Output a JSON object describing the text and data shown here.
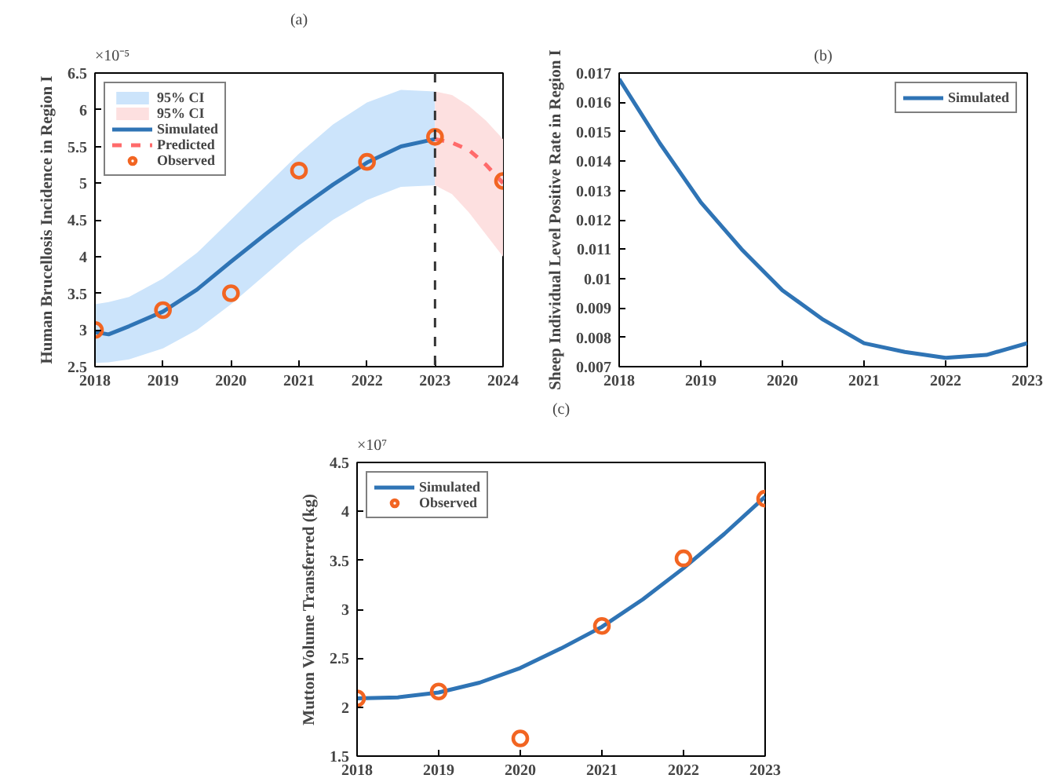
{
  "chart_data": [
    {
      "type": "line",
      "title": "(a)",
      "ylabel": "Human Brucellosis Incidence in Region I",
      "annotations": [
        "×10⁻⁵"
      ],
      "xlim": [
        2018,
        2024
      ],
      "xticks": [
        2018,
        2019,
        2020,
        2021,
        2022,
        2023,
        2024
      ],
      "ylim": [
        2.5,
        6.5
      ],
      "yticks": [
        2.5,
        3,
        3.5,
        4,
        4.5,
        5,
        5.5,
        6,
        6.5
      ],
      "grid": false,
      "legend": "top left",
      "ref_lines": [
        {
          "axis": "x",
          "value": 2023,
          "color": "#333333",
          "line_style": "dashed"
        }
      ],
      "series": [
        {
          "type": "area",
          "name": "95% CI",
          "color": "#cce4fb"
        },
        {
          "type": "area",
          "name": "95% CI",
          "color": "#fde0e0"
        },
        {
          "type": "line",
          "name": "Simulated",
          "color": "#2f74b5",
          "line_style": "solid",
          "x": [
            2018,
            2018.2,
            2018.5,
            2019,
            2019.5,
            2020,
            2020.5,
            2021,
            2021.5,
            2022,
            2022.5,
            2023
          ],
          "values": [
            2.97,
            2.94,
            3.05,
            3.25,
            3.55,
            3.93,
            4.3,
            4.65,
            4.98,
            5.28,
            5.5,
            5.6
          ],
          "lower": [
            2.55,
            2.56,
            2.6,
            2.75,
            3.0,
            3.35,
            3.75,
            4.15,
            4.5,
            4.77,
            4.95,
            4.97
          ],
          "upper": [
            3.35,
            3.38,
            3.45,
            3.7,
            4.05,
            4.5,
            4.95,
            5.4,
            5.8,
            6.1,
            6.27,
            6.25
          ]
        },
        {
          "type": "line",
          "name": "Predicted",
          "color": "#ff6b6b",
          "line_style": "dashed",
          "x": [
            2023,
            2023.25,
            2023.5,
            2023.75,
            2024
          ],
          "values": [
            5.6,
            5.55,
            5.45,
            5.25,
            5.0
          ],
          "lower": [
            4.97,
            4.85,
            4.6,
            4.3,
            4.0
          ],
          "upper": [
            6.25,
            6.2,
            6.05,
            5.85,
            5.6
          ]
        },
        {
          "type": "scatter",
          "name": "Observed",
          "color": "#f26522",
          "marker": "circle",
          "x": [
            2018,
            2019,
            2020,
            2021,
            2022,
            2023,
            2024
          ],
          "values": [
            3.0,
            3.27,
            3.5,
            5.17,
            5.29,
            5.63,
            5.03
          ]
        }
      ]
    },
    {
      "type": "line",
      "title": "(b)",
      "ylabel": "Sheep Individual Level Positive Rate in Region I",
      "xlim": [
        2018,
        2023
      ],
      "xticks": [
        2018,
        2019,
        2020,
        2021,
        2022,
        2023
      ],
      "ylim": [
        0.007,
        0.017
      ],
      "yticks": [
        0.007,
        0.008,
        0.009,
        0.01,
        0.011,
        0.012,
        0.013,
        0.014,
        0.015,
        0.016,
        0.017
      ],
      "grid": false,
      "legend": "top right",
      "series": [
        {
          "name": "Simulated",
          "color": "#2f74b5",
          "line_style": "solid",
          "x": [
            2018,
            2018.25,
            2018.5,
            2018.75,
            2019,
            2019.5,
            2020,
            2020.5,
            2021,
            2021.5,
            2022,
            2022.5,
            2023
          ],
          "values": [
            0.0168,
            0.0157,
            0.0146,
            0.0136,
            0.0126,
            0.011,
            0.0096,
            0.0086,
            0.0078,
            0.0075,
            0.0073,
            0.0074,
            0.0078
          ]
        }
      ]
    },
    {
      "type": "line",
      "title": "(c)",
      "ylabel": "Mutton Volume Transferred (kg)",
      "annotations": [
        "×10⁷"
      ],
      "xlim": [
        2018,
        2023
      ],
      "xticks": [
        2018,
        2019,
        2020,
        2021,
        2022,
        2023
      ],
      "ylim": [
        1.5,
        4.5
      ],
      "yticks": [
        1.5,
        2,
        2.5,
        3,
        3.5,
        4,
        4.5
      ],
      "grid": false,
      "legend": "top left",
      "series": [
        {
          "name": "Simulated",
          "color": "#2f74b5",
          "line_style": "solid",
          "x": [
            2018,
            2018.5,
            2019,
            2019.5,
            2020,
            2020.5,
            2021,
            2021.5,
            2022,
            2022.5,
            2023
          ],
          "values": [
            2.09,
            2.1,
            2.15,
            2.25,
            2.4,
            2.6,
            2.82,
            3.1,
            3.42,
            3.77,
            4.15
          ]
        },
        {
          "type": "scatter",
          "name": "Observed",
          "color": "#f26522",
          "marker": "circle",
          "x": [
            2018,
            2019,
            2020,
            2021,
            2022,
            2023
          ],
          "values": [
            2.09,
            2.16,
            1.68,
            2.83,
            3.52,
            4.13
          ]
        }
      ]
    }
  ]
}
